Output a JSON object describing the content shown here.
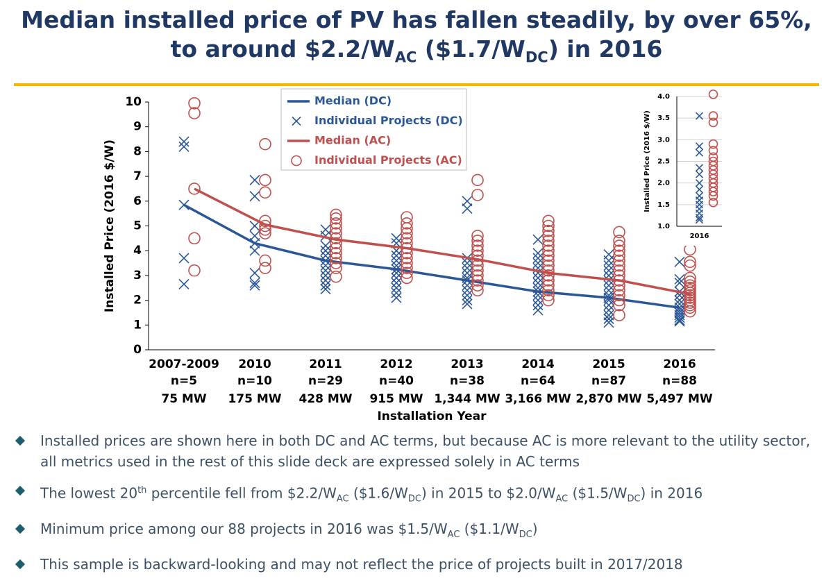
{
  "title": {
    "lines": [
      [
        {
          "text": "Median installed price of PV has fallen steadily, by over 65%,"
        }
      ],
      [
        {
          "text": "to around $2.2/W"
        },
        {
          "text": "AC",
          "format": "sub"
        },
        {
          "text": " ($1.7/W"
        },
        {
          "text": "DC",
          "format": "sub"
        },
        {
          "text": ") in 2016"
        }
      ]
    ]
  },
  "chart_data": [
    {
      "type": "line",
      "ylabel": "Installed Price (2016 $/W)",
      "xlabel": "Installation Year",
      "categories": [
        "2007-2009",
        "2010",
        "2011",
        "2012",
        "2013",
        "2014",
        "2015",
        "2016"
      ],
      "category_counts": [
        "n=5",
        "n=10",
        "n=29",
        "n=40",
        "n=38",
        "n=64",
        "n=87",
        "n=88"
      ],
      "category_capacity": [
        "75 MW",
        "175 MW",
        "428 MW",
        "915 MW",
        "1,344 MW",
        "3,166 MW",
        "2,870 MW",
        "5,497 MW"
      ],
      "ylim": [
        0,
        10
      ],
      "yticks": [
        0,
        1,
        2,
        3,
        4,
        5,
        6,
        7,
        8,
        9,
        10
      ],
      "grid": false,
      "legend": "upper center",
      "series": [
        {
          "name": "Median (DC)",
          "type": "line",
          "color": "#2b5797",
          "values": [
            5.85,
            4.3,
            3.6,
            3.25,
            2.8,
            2.35,
            2.1,
            1.7
          ]
        },
        {
          "name": "Individual Projects (DC)",
          "type": "scatter",
          "marker": "x",
          "color": "#2b5797",
          "points": [
            [
              8.4,
              8.2,
              5.85,
              3.7,
              2.65
            ],
            [
              6.85,
              6.2,
              5.0,
              4.6,
              4.3,
              4.0,
              3.1,
              2.7,
              2.6
            ],
            [
              4.85,
              4.6,
              4.2,
              4.0,
              3.8,
              3.6,
              3.4,
              3.2,
              3.0,
              2.8,
              2.6,
              2.45
            ],
            [
              4.5,
              4.3,
              4.0,
              3.8,
              3.6,
              3.4,
              3.25,
              3.1,
              2.9,
              2.7,
              2.5,
              2.3,
              2.1
            ],
            [
              6.0,
              5.7,
              3.7,
              3.5,
              3.3,
              3.1,
              2.9,
              2.8,
              2.6,
              2.4,
              2.2,
              2.0,
              1.85
            ],
            [
              4.45,
              3.9,
              3.7,
              3.5,
              3.3,
              3.1,
              2.9,
              2.7,
              2.5,
              2.35,
              2.2,
              2.0,
              1.8,
              1.6
            ],
            [
              3.85,
              3.6,
              3.4,
              3.2,
              3.0,
              2.8,
              2.6,
              2.4,
              2.2,
              2.1,
              2.0,
              1.8,
              1.6,
              1.4,
              1.25,
              1.1
            ],
            [
              3.55,
              2.85,
              2.7,
              2.35,
              2.2,
              2.0,
              1.85,
              1.7,
              1.6,
              1.5,
              1.4,
              1.3,
              1.2,
              1.15
            ]
          ]
        },
        {
          "name": "Median (AC)",
          "type": "line",
          "color": "#c0504d",
          "values": [
            6.5,
            5.05,
            4.45,
            4.1,
            3.65,
            3.1,
            2.8,
            2.25
          ]
        },
        {
          "name": "Individual Projects (AC)",
          "type": "scatter",
          "marker": "circle",
          "color": "#c0504d",
          "points": [
            [
              9.95,
              9.55,
              6.5,
              4.5,
              3.2
            ],
            [
              8.3,
              6.85,
              6.35,
              5.2,
              5.0,
              4.85,
              4.7,
              3.6,
              3.3
            ],
            [
              5.45,
              5.3,
              5.1,
              4.9,
              4.7,
              4.5,
              4.3,
              4.1,
              3.9,
              3.7,
              3.5,
              3.3,
              2.95
            ],
            [
              5.35,
              5.1,
              4.9,
              4.7,
              4.5,
              4.3,
              4.1,
              3.9,
              3.7,
              3.5,
              3.3,
              3.1,
              2.9
            ],
            [
              6.85,
              6.25,
              4.6,
              4.4,
              4.2,
              4.0,
              3.8,
              3.6,
              3.4,
              3.2,
              3.0,
              2.8,
              2.6,
              2.4
            ],
            [
              5.2,
              5.0,
              4.8,
              4.6,
              4.4,
              4.2,
              4.0,
              3.8,
              3.6,
              3.4,
              3.2,
              3.0,
              2.8,
              2.6,
              2.4,
              2.2,
              2.0
            ],
            [
              4.75,
              4.4,
              4.2,
              4.0,
              3.8,
              3.6,
              3.4,
              3.2,
              3.0,
              2.8,
              2.6,
              2.4,
              2.2,
              2.0,
              1.8,
              1.4
            ],
            [
              4.05,
              3.55,
              3.4,
              2.9,
              2.75,
              2.6,
              2.5,
              2.4,
              2.3,
              2.2,
              2.1,
              2.0,
              1.9,
              1.8,
              1.7,
              1.55
            ]
          ]
        }
      ]
    },
    {
      "type": "scatter",
      "ylabel": "Installed Price (2016 $/W)",
      "categories": [
        "2016"
      ],
      "ylim": [
        1,
        4
      ],
      "yticks": [
        {
          "value": 1,
          "label": "1.0"
        },
        {
          "value": 1.5,
          "label": "1.5"
        },
        {
          "value": 2,
          "label": "2.0"
        },
        {
          "value": 2.5,
          "label": "2.5"
        },
        {
          "value": 3,
          "label": "3.0"
        },
        {
          "value": 3.5,
          "label": "3.5"
        },
        {
          "value": 4,
          "label": "4.0"
        }
      ],
      "grid": true,
      "series": [
        {
          "type": "scatter",
          "marker": "x",
          "color": "#2b5797",
          "points": [
            [
              3.55,
              2.85,
              2.7,
              2.35,
              2.2,
              2.0,
              1.85,
              1.7,
              1.6,
              1.5,
              1.4,
              1.3,
              1.2,
              1.15
            ]
          ]
        },
        {
          "type": "scatter",
          "marker": "circle",
          "color": "#c0504d",
          "points": [
            [
              4.05,
              3.55,
              3.4,
              2.9,
              2.75,
              2.6,
              2.5,
              2.4,
              2.3,
              2.2,
              2.1,
              2.0,
              1.9,
              1.8,
              1.7,
              1.55
            ]
          ]
        }
      ]
    }
  ],
  "bullets": [
    [
      {
        "text": "Installed prices are shown here in both DC and AC terms, but because AC is more relevant to the utility sector, all metrics used in the rest of this slide deck are expressed solely in AC terms"
      }
    ],
    [
      {
        "text": "The lowest 20"
      },
      {
        "text": "th",
        "format": "sup"
      },
      {
        "text": " percentile fell from $2.2/W"
      },
      {
        "text": "AC",
        "format": "sub"
      },
      {
        "text": " ($1.6/W"
      },
      {
        "text": "DC",
        "format": "sub"
      },
      {
        "text": ") in 2015 to $2.0/W"
      },
      {
        "text": "AC",
        "format": "sub"
      },
      {
        "text": " ($1.5/W"
      },
      {
        "text": "DC",
        "format": "sub"
      },
      {
        "text": ") in 2016"
      }
    ],
    [
      {
        "text": "Minimum price among our 88 projects in 2016 was  $1.5/W"
      },
      {
        "text": "AC",
        "format": "sub"
      },
      {
        "text": " ($1.1/W"
      },
      {
        "text": "DC",
        "format": "sub"
      },
      {
        "text": ")"
      }
    ],
    [
      {
        "text": "This sample is backward-looking and may not reflect the price of projects built in 2017/2018"
      }
    ]
  ]
}
